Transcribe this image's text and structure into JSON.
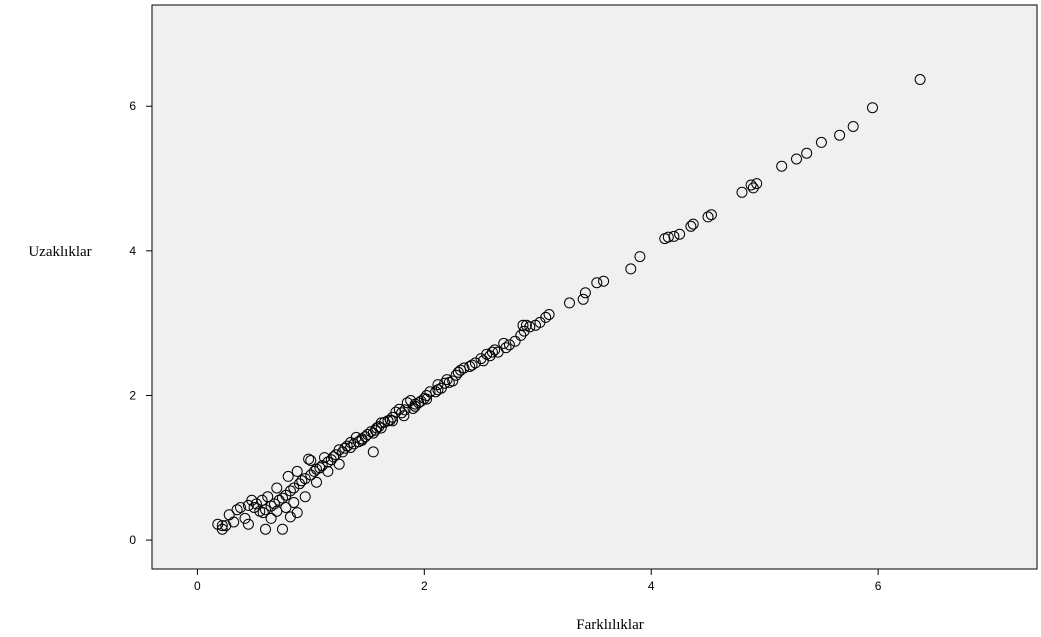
{
  "chart_data": {
    "type": "scatter",
    "xlabel": "Farklılıklar",
    "ylabel": "Uzaklıklar",
    "xlim": [
      -0.4,
      7.4
    ],
    "ylim": [
      -0.4,
      7.4
    ],
    "xticks": [
      0,
      2,
      4,
      6
    ],
    "yticks": [
      0,
      2,
      4,
      6
    ],
    "grid": false,
    "colors": {
      "plot_background": "#f0f0f0",
      "marker": "#000000"
    },
    "points": [
      [
        6.37,
        6.37
      ],
      [
        5.95,
        5.98
      ],
      [
        5.78,
        5.72
      ],
      [
        5.66,
        5.6
      ],
      [
        5.5,
        5.5
      ],
      [
        5.37,
        5.35
      ],
      [
        5.28,
        5.27
      ],
      [
        5.15,
        5.17
      ],
      [
        4.93,
        4.93
      ],
      [
        4.9,
        4.87
      ],
      [
        4.88,
        4.91
      ],
      [
        4.8,
        4.81
      ],
      [
        4.53,
        4.5
      ],
      [
        4.5,
        4.47
      ],
      [
        4.37,
        4.37
      ],
      [
        4.35,
        4.34
      ],
      [
        4.25,
        4.23
      ],
      [
        4.2,
        4.2
      ],
      [
        4.15,
        4.19
      ],
      [
        4.12,
        4.17
      ],
      [
        3.9,
        3.92
      ],
      [
        3.82,
        3.75
      ],
      [
        3.58,
        3.58
      ],
      [
        3.52,
        3.56
      ],
      [
        3.42,
        3.42
      ],
      [
        3.4,
        3.33
      ],
      [
        3.28,
        3.28
      ],
      [
        3.1,
        3.12
      ],
      [
        3.07,
        3.08
      ],
      [
        3.02,
        3.01
      ],
      [
        2.98,
        2.97
      ],
      [
        2.93,
        2.95
      ],
      [
        2.9,
        2.97
      ],
      [
        2.87,
        2.97
      ],
      [
        2.88,
        2.89
      ],
      [
        2.85,
        2.83
      ],
      [
        2.8,
        2.75
      ],
      [
        2.75,
        2.7
      ],
      [
        2.72,
        2.66
      ],
      [
        2.7,
        2.72
      ],
      [
        2.65,
        2.6
      ],
      [
        2.6,
        2.6
      ],
      [
        2.58,
        2.55
      ],
      [
        2.55,
        2.57
      ],
      [
        2.5,
        2.51
      ],
      [
        2.45,
        2.45
      ],
      [
        2.4,
        2.4
      ],
      [
        2.35,
        2.38
      ],
      [
        2.3,
        2.32
      ],
      [
        2.28,
        2.28
      ],
      [
        2.25,
        2.2
      ],
      [
        2.2,
        2.22
      ],
      [
        2.18,
        2.17
      ],
      [
        2.15,
        2.1
      ],
      [
        2.12,
        2.15
      ],
      [
        2.1,
        2.05
      ],
      [
        2.05,
        2.05
      ],
      [
        2.02,
        2.0
      ],
      [
        2.0,
        1.96
      ],
      [
        1.97,
        1.92
      ],
      [
        1.95,
        1.9
      ],
      [
        1.92,
        1.88
      ],
      [
        1.9,
        1.82
      ],
      [
        1.88,
        1.93
      ],
      [
        1.85,
        1.9
      ],
      [
        1.83,
        1.8
      ],
      [
        1.8,
        1.76
      ],
      [
        1.78,
        1.81
      ],
      [
        1.75,
        1.77
      ],
      [
        1.72,
        1.7
      ],
      [
        1.7,
        1.66
      ],
      [
        1.68,
        1.65
      ],
      [
        1.65,
        1.63
      ],
      [
        1.62,
        1.62
      ],
      [
        1.6,
        1.57
      ],
      [
        1.58,
        1.55
      ],
      [
        1.57,
        1.52
      ],
      [
        1.55,
        1.48
      ],
      [
        1.53,
        1.5
      ],
      [
        1.5,
        1.46
      ],
      [
        1.48,
        1.43
      ],
      [
        1.45,
        1.4
      ],
      [
        1.42,
        1.36
      ],
      [
        1.4,
        1.42
      ],
      [
        1.38,
        1.33
      ],
      [
        1.35,
        1.35
      ],
      [
        1.32,
        1.3
      ],
      [
        1.3,
        1.27
      ],
      [
        1.28,
        1.22
      ],
      [
        1.25,
        1.25
      ],
      [
        1.22,
        1.18
      ],
      [
        1.2,
        1.15
      ],
      [
        1.18,
        1.11
      ],
      [
        1.15,
        1.08
      ],
      [
        1.12,
        1.14
      ],
      [
        1.1,
        1.03
      ],
      [
        1.08,
        1.0
      ],
      [
        1.05,
        0.98
      ],
      [
        1.03,
        0.95
      ],
      [
        1.0,
        0.9
      ],
      [
        0.98,
        1.12
      ],
      [
        0.95,
        0.85
      ],
      [
        0.92,
        0.82
      ],
      [
        0.9,
        0.78
      ],
      [
        0.88,
        0.95
      ],
      [
        0.85,
        0.72
      ],
      [
        0.82,
        0.68
      ],
      [
        0.8,
        0.88
      ],
      [
        0.78,
        0.62
      ],
      [
        0.75,
        0.58
      ],
      [
        0.72,
        0.55
      ],
      [
        0.7,
        0.72
      ],
      [
        0.68,
        0.5
      ],
      [
        0.65,
        0.47
      ],
      [
        0.62,
        0.6
      ],
      [
        0.6,
        0.42
      ],
      [
        0.57,
        0.55
      ],
      [
        0.55,
        0.4
      ],
      [
        0.52,
        0.5
      ],
      [
        0.5,
        0.45
      ],
      [
        0.45,
        0.48
      ],
      [
        0.42,
        0.3
      ],
      [
        0.38,
        0.45
      ],
      [
        0.35,
        0.42
      ],
      [
        0.32,
        0.25
      ],
      [
        0.28,
        0.35
      ],
      [
        0.25,
        0.2
      ],
      [
        0.22,
        0.15
      ],
      [
        0.18,
        0.22
      ],
      [
        0.22,
        0.2
      ],
      [
        0.45,
        0.22
      ],
      [
        0.6,
        0.15
      ],
      [
        0.75,
        0.15
      ],
      [
        0.88,
        0.38
      ],
      [
        0.82,
        0.32
      ],
      [
        0.65,
        0.3
      ],
      [
        1.55,
        1.22
      ],
      [
        0.78,
        0.45
      ],
      [
        0.7,
        0.4
      ],
      [
        0.95,
        0.6
      ],
      [
        1.05,
        0.8
      ],
      [
        1.15,
        0.95
      ],
      [
        1.25,
        1.05
      ],
      [
        1.35,
        1.28
      ],
      [
        1.45,
        1.38
      ],
      [
        1.62,
        1.55
      ],
      [
        1.72,
        1.65
      ],
      [
        1.82,
        1.72
      ],
      [
        1.92,
        1.85
      ],
      [
        2.02,
        1.95
      ],
      [
        2.12,
        2.08
      ],
      [
        2.22,
        2.18
      ],
      [
        2.32,
        2.35
      ],
      [
        2.42,
        2.42
      ],
      [
        2.52,
        2.48
      ],
      [
        2.62,
        2.63
      ],
      [
        0.58,
        0.38
      ],
      [
        0.48,
        0.55
      ],
      [
        0.85,
        0.52
      ],
      [
        1.0,
        1.1
      ]
    ]
  }
}
